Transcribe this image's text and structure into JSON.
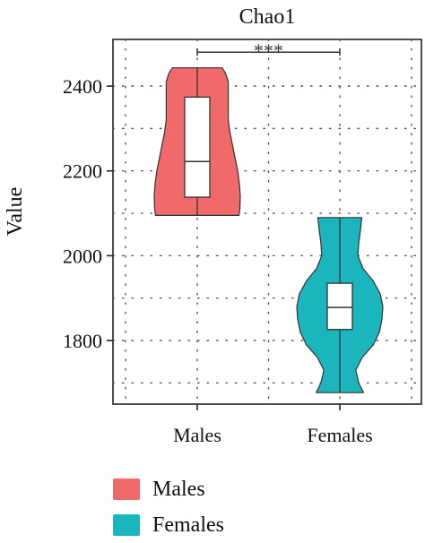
{
  "chart_data": {
    "type": "violin",
    "title": "Chao1",
    "xlabel": "",
    "ylabel": "Value",
    "categories": [
      "Males",
      "Females"
    ],
    "ylim": [
      1650,
      2510
    ],
    "yticks": [
      1800,
      2000,
      2200,
      2400
    ],
    "grid": true,
    "legend_position": "bottom",
    "significance": {
      "label": "***",
      "between": [
        "Males",
        "Females"
      ],
      "y": 2480
    },
    "series": [
      {
        "name": "Males",
        "color": "#F0696B",
        "box": {
          "q1": 2138,
          "median": 2222,
          "q3": 2374
        },
        "range": [
          2095,
          2443
        ],
        "density": [
          [
            2095,
            0.97
          ],
          [
            2110,
            0.99
          ],
          [
            2140,
            1.0
          ],
          [
            2170,
            0.98
          ],
          [
            2200,
            0.94
          ],
          [
            2230,
            0.88
          ],
          [
            2260,
            0.82
          ],
          [
            2290,
            0.76
          ],
          [
            2320,
            0.72
          ],
          [
            2350,
            0.72
          ],
          [
            2380,
            0.72
          ],
          [
            2410,
            0.72
          ],
          [
            2430,
            0.66
          ],
          [
            2443,
            0.58
          ]
        ]
      },
      {
        "name": "Females",
        "color": "#1BB5BD",
        "box": {
          "q1": 1826,
          "median": 1878,
          "q3": 1935
        },
        "range": [
          1677,
          2090
        ],
        "density": [
          [
            1677,
            0.55
          ],
          [
            1700,
            0.44
          ],
          [
            1730,
            0.37
          ],
          [
            1760,
            0.52
          ],
          [
            1790,
            0.78
          ],
          [
            1820,
            0.92
          ],
          [
            1850,
            0.98
          ],
          [
            1880,
            1.0
          ],
          [
            1910,
            0.94
          ],
          [
            1940,
            0.78
          ],
          [
            1970,
            0.54
          ],
          [
            2000,
            0.42
          ],
          [
            2030,
            0.44
          ],
          [
            2060,
            0.48
          ],
          [
            2090,
            0.51
          ]
        ]
      }
    ]
  }
}
